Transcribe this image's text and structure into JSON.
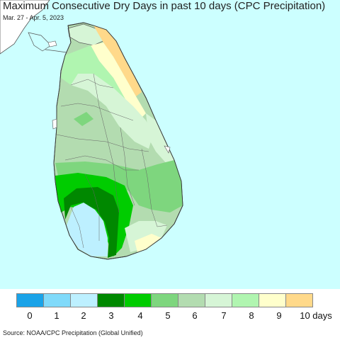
{
  "header": {
    "title": "Maximum Consecutive Dry Days in past 10 days (CPC Precipitation)",
    "subtitle": "Mar. 27 - Apr. 5, 2023"
  },
  "legend": {
    "colors": [
      "#1aa3e8",
      "#80dafa",
      "#bdf0ff",
      "#008800",
      "#00cc00",
      "#7ed67e",
      "#b3dcb0",
      "#d6f5d6",
      "#b0f5b0",
      "#ffffcc",
      "#ffd98a"
    ],
    "ticks": [
      "0",
      "1",
      "2",
      "3",
      "4",
      "5",
      "6",
      "7",
      "8",
      "9",
      "10 days"
    ]
  },
  "footer": {
    "source": "Source: NOAA/CPC Precipitation (Global Unified)"
  },
  "map_colors": {
    "ocean": "#ccffff",
    "india": "#ffffff",
    "border": "#555555"
  }
}
